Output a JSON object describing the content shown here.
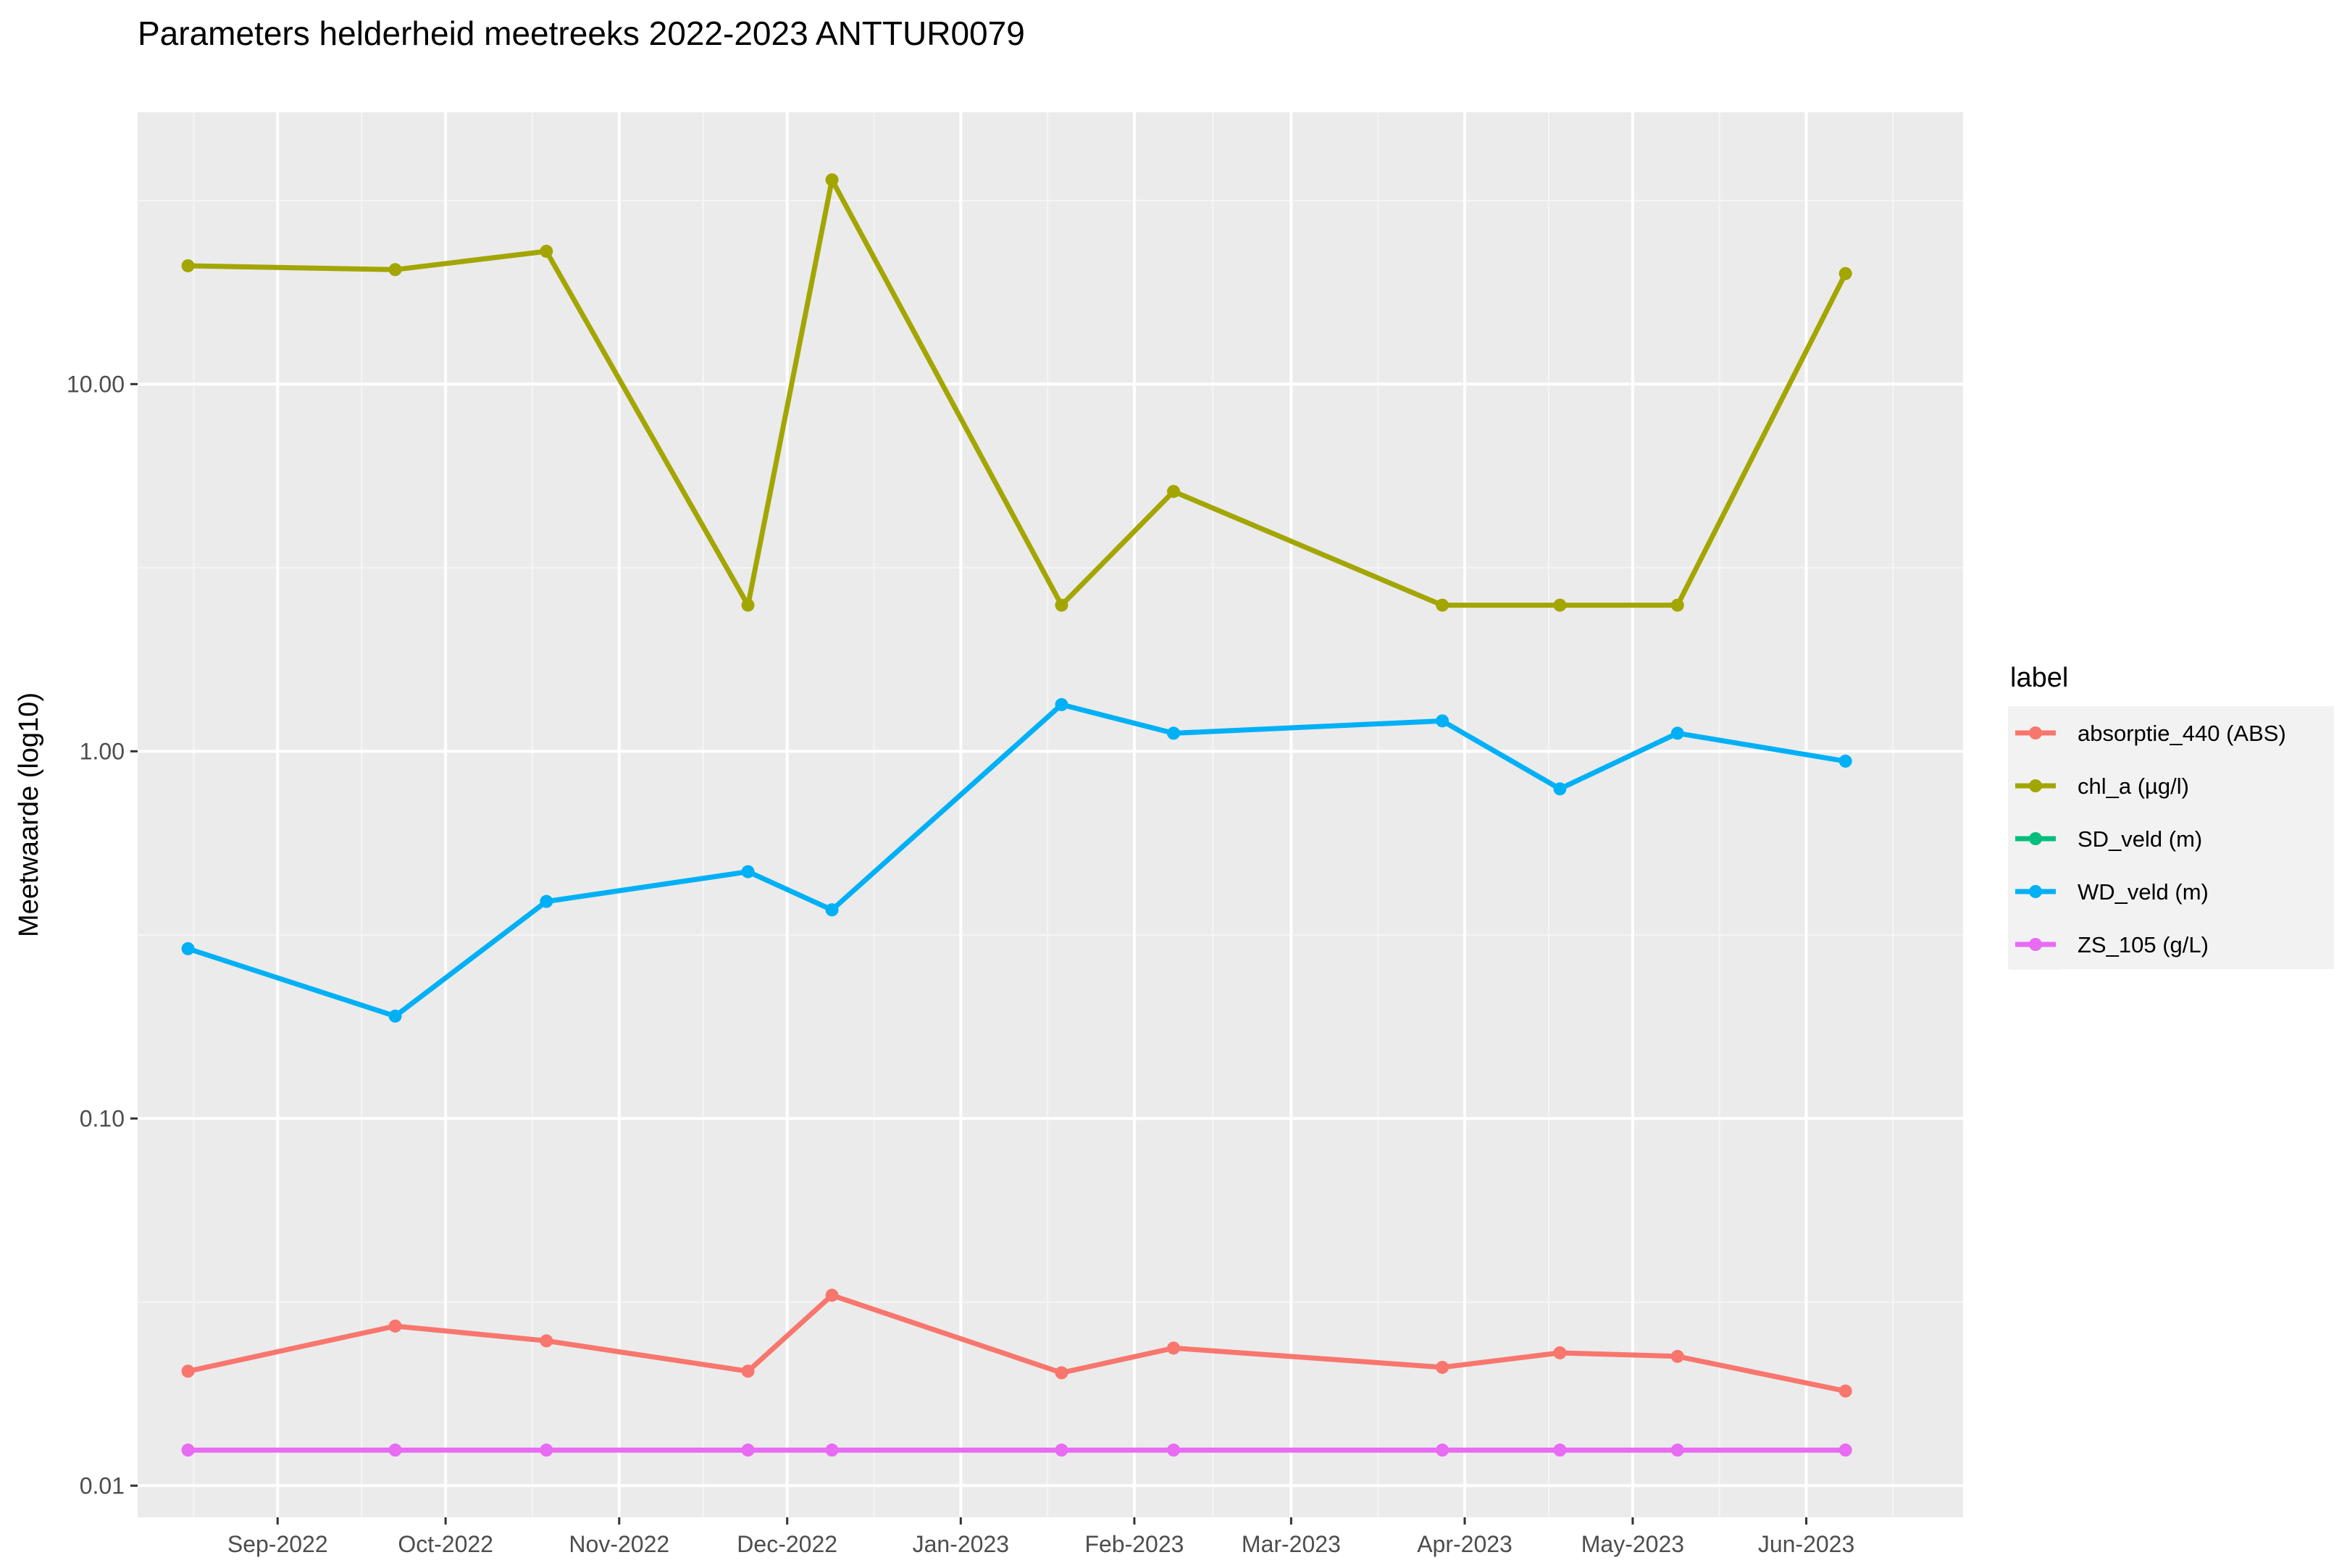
{
  "chart_data": {
    "type": "line",
    "title": "Parameters helderheid meetreeks 2022-2023 ANTTUR0079",
    "xlabel": "",
    "ylabel": "Meetwaarde (log10)",
    "y_scale": "log10",
    "ylim": [
      0.0082,
      55
    ],
    "y_ticks": [
      0.01,
      0.1,
      1,
      10
    ],
    "y_tick_labels": [
      "0.01",
      "0.10",
      "1.00",
      "10.00"
    ],
    "xlim": [
      "2022-08-07",
      "2023-06-29"
    ],
    "x_ticks": [
      "2022-09-01",
      "2022-10-01",
      "2022-11-01",
      "2022-12-01",
      "2023-01-01",
      "2023-02-01",
      "2023-03-01",
      "2023-04-01",
      "2023-05-01",
      "2023-06-01"
    ],
    "x_tick_labels": [
      "Sep-2022",
      "Oct-2022",
      "Nov-2022",
      "Dec-2022",
      "Jan-2023",
      "Feb-2023",
      "Mar-2023",
      "Apr-2023",
      "May-2023",
      "Jun-2023"
    ],
    "grid": true,
    "legend": {
      "title": "label",
      "position": "right"
    },
    "series": [
      {
        "name": "absorptie_440 (ABS)",
        "color": "#F8766D",
        "x": [
          "2022-08-16",
          "2022-09-22",
          "2022-10-19",
          "2022-11-24",
          "2022-12-09",
          "2023-01-19",
          "2023-02-08",
          "2023-03-28",
          "2023-04-18",
          "2023-05-09",
          "2023-06-08"
        ],
        "values": [
          0.0205,
          0.0272,
          0.0248,
          0.0205,
          0.033,
          0.0203,
          0.0237,
          0.021,
          0.023,
          0.0225,
          0.0181
        ]
      },
      {
        "name": "chl_a (µg/l)",
        "color": "#A3A500",
        "x": [
          "2022-08-16",
          "2022-09-22",
          "2022-10-19",
          "2022-11-24",
          "2022-12-09",
          "2023-01-19",
          "2023-02-08",
          "2023-03-28",
          "2023-04-18",
          "2023-05-09",
          "2023-06-08"
        ],
        "values": [
          21.0,
          20.5,
          23.0,
          2.5,
          36.0,
          2.5,
          5.1,
          2.5,
          2.5,
          2.5,
          20.0
        ]
      },
      {
        "name": "SD_veld (m)",
        "color": "#00BF7D",
        "x": [],
        "values": []
      },
      {
        "name": "WD_veld (m)",
        "color": "#00B0F6",
        "x": [
          "2022-08-16",
          "2022-09-22",
          "2022-10-19",
          "2022-11-24",
          "2022-12-09",
          "2023-01-19",
          "2023-02-08",
          "2023-03-28",
          "2023-04-18",
          "2023-05-09",
          "2023-06-08"
        ],
        "values": [
          0.29,
          0.19,
          0.39,
          0.47,
          0.37,
          1.34,
          1.12,
          1.21,
          0.79,
          1.12,
          0.94
        ]
      },
      {
        "name": "ZS_105 (g/L)",
        "color": "#E76BF3",
        "x": [
          "2022-08-16",
          "2022-09-22",
          "2022-10-19",
          "2022-11-24",
          "2022-12-09",
          "2023-01-19",
          "2023-02-08",
          "2023-03-28",
          "2023-04-18",
          "2023-05-09",
          "2023-06-08"
        ],
        "values": [
          0.0125,
          0.0125,
          0.0125,
          0.0125,
          0.0125,
          0.0125,
          0.0125,
          0.0125,
          0.0125,
          0.0125,
          0.0125
        ]
      }
    ]
  }
}
